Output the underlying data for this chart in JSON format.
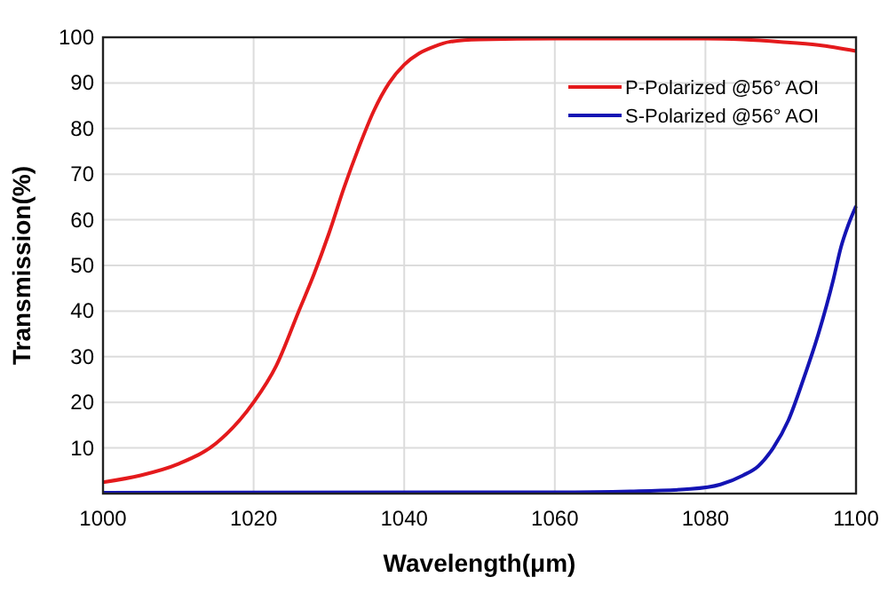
{
  "chart_data": {
    "type": "line",
    "xlabel": "Wavelength(μm)",
    "ylabel": "Transmission(%)",
    "xlim": [
      1000,
      1100
    ],
    "xticks": [
      1000,
      1020,
      1040,
      1060,
      1080,
      1100
    ],
    "ylim": [
      0,
      100
    ],
    "yticks": [
      {
        "value": 0,
        "label": null
      },
      10,
      20,
      30,
      40,
      50,
      60,
      70,
      80,
      90,
      100
    ],
    "grid": true,
    "legend": "top right",
    "marker": "none",
    "line_style": "solid",
    "series": [
      {
        "name": "P-Polarized @56° AOI",
        "color": "#e41a1c",
        "x": [
          1000,
          1005,
          1010,
          1015,
          1020,
          1023,
          1026,
          1028,
          1030,
          1032,
          1034,
          1036,
          1038,
          1040,
          1042,
          1044,
          1046,
          1050,
          1060,
          1070,
          1080,
          1085,
          1090,
          1095,
          1100
        ],
        "values": [
          2.5,
          4,
          6.5,
          11,
          20,
          28,
          40,
          48,
          57,
          67,
          76,
          84,
          90,
          94,
          96.5,
          98,
          99,
          99.5,
          99.7,
          99.7,
          99.7,
          99.5,
          99,
          98.3,
          97
        ]
      },
      {
        "name": "S-Polarized @56° AOI",
        "color": "#1414b4",
        "x": [
          1000,
          1060,
          1070,
          1078,
          1082,
          1085,
          1087,
          1089,
          1091,
          1093,
          1095,
          1097,
          1098,
          1099,
          1100
        ],
        "values": [
          0.2,
          0.3,
          0.5,
          1,
          2,
          4,
          6,
          10,
          16,
          25,
          35,
          47,
          54,
          59,
          63
        ]
      }
    ]
  }
}
